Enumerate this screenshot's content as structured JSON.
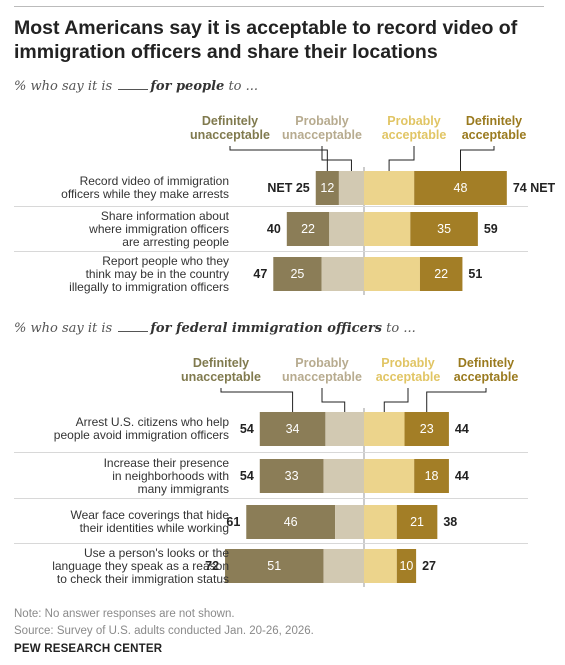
{
  "title": "Most Americans say it is acceptable to record video of immigration officers and share their locations",
  "colors": {
    "definitely_unacceptable": "#8b7d57",
    "probably_unacceptable": "#d2c9b2",
    "probably_acceptable": "#ecd48c",
    "definitely_acceptable": "#a37e26",
    "legend_text_definitely_unacceptable": "#807a4e",
    "legend_text_probably_unacceptable": "#b7ab8f",
    "legend_text_probably_acceptable": "#e1c564",
    "legend_text_definitely_acceptable": "#9a7a1e"
  },
  "chart_data": [
    {
      "type": "bar",
      "subtitle": {
        "prefix": "% who say it is",
        "emphasis": "for people",
        "suffix": "to ..."
      },
      "legend": [
        "Definitely unacceptable",
        "Probably unacceptable",
        "Probably acceptable",
        "Definitely acceptable"
      ],
      "categories": [
        "Record video of immigration officers while they make arrests",
        "Share information about where immigration officers are arresting people",
        "Report people who they think may be in the country illegally to immigration officers"
      ],
      "series": [
        {
          "name": "Definitely unacceptable",
          "values": [
            12,
            22,
            25
          ],
          "shown_labels": [
            "12",
            "22",
            "25"
          ]
        },
        {
          "name": "Probably unacceptable",
          "values": [
            13,
            18,
            22
          ],
          "shown_labels": [
            "",
            "",
            ""
          ]
        },
        {
          "name": "Probably acceptable",
          "values": [
            26,
            24,
            29
          ],
          "shown_labels": [
            "",
            "",
            ""
          ]
        },
        {
          "name": "Definitely acceptable",
          "values": [
            48,
            35,
            22
          ],
          "shown_labels": [
            "48",
            "35",
            "22"
          ]
        }
      ],
      "net_unacceptable": [
        "NET 25",
        "40",
        "47"
      ],
      "net_acceptable": [
        "74 NET",
        "59",
        "51"
      ]
    },
    {
      "type": "bar",
      "subtitle": {
        "prefix": "% who say it is",
        "emphasis": "for federal immigration officers",
        "suffix": "to ..."
      },
      "legend": [
        "Definitely unacceptable",
        "Probably unacceptable",
        "Probably acceptable",
        "Definitely acceptable"
      ],
      "categories": [
        "Arrest U.S. citizens who help people avoid immigration officers",
        "Increase their presence in neighborhoods with many immigrants",
        "Wear face coverings that hide their identities while working",
        "Use a person's looks or the language they speak as a reason to check their immigration status"
      ],
      "series": [
        {
          "name": "Definitely unacceptable",
          "values": [
            34,
            33,
            46,
            51
          ],
          "shown_labels": [
            "34",
            "33",
            "46",
            "51"
          ]
        },
        {
          "name": "Probably unacceptable",
          "values": [
            20,
            21,
            15,
            21
          ],
          "shown_labels": [
            "",
            "",
            "",
            ""
          ]
        },
        {
          "name": "Probably acceptable",
          "values": [
            21,
            26,
            17,
            17
          ],
          "shown_labels": [
            "",
            "",
            "",
            ""
          ]
        },
        {
          "name": "Definitely acceptable",
          "values": [
            23,
            18,
            21,
            10
          ],
          "shown_labels": [
            "23",
            "18",
            "21",
            "10"
          ]
        }
      ],
      "net_unacceptable": [
        "54",
        "54",
        "61",
        "72"
      ],
      "net_acceptable": [
        "44",
        "44",
        "38",
        "27"
      ]
    }
  ],
  "footer": {
    "note": "Note: No answer responses are not shown.",
    "source": "Source: Survey of U.S. adults conducted Jan. 20-26, 2026.",
    "brand": "PEW RESEARCH CENTER"
  }
}
